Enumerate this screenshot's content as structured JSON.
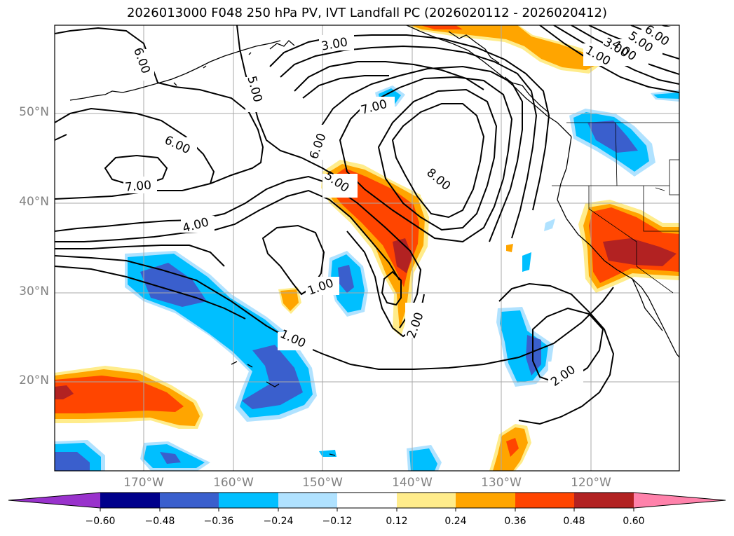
{
  "title": "2026013000 F048 250 hPa PV, IVT Landfall PC (2026020112 - 2026020412)",
  "lat_labels": [
    "50°N",
    "40°N",
    "30°N",
    "20°N"
  ],
  "lon_labels": [
    "170°W",
    "160°W",
    "150°W",
    "140°W",
    "130°W",
    "120°W"
  ],
  "contour_labels": [
    "3.00",
    "6.00",
    "5.00",
    "6.00",
    "7.00",
    "4.00",
    "6.00",
    "7.00",
    "5.00",
    "8.00",
    "1.00",
    "1.00",
    "2.00",
    "2.00",
    "5.00",
    "6.00",
    "4.00",
    "3.00",
    "1.00"
  ],
  "colorbar": {
    "ticks": [
      "−0.60",
      "−0.48",
      "−0.36",
      "−0.24",
      "−0.12",
      "0.12",
      "0.24",
      "0.36",
      "0.48",
      "0.60"
    ],
    "colors": [
      "#9932cc",
      "#00008b",
      "#3a5fcd",
      "#00bfff",
      "#b0e2ff",
      "#ffffff",
      "#ffec8b",
      "#ffa500",
      "#ff4500",
      "#b22222",
      "#ff82ab"
    ]
  },
  "shading_colors": {
    "neg1": "#b0e2ff",
    "neg2": "#00bfff",
    "neg3": "#3a5fcd",
    "neg4": "#00008b",
    "pos1": "#ffec8b",
    "pos2": "#ffa500",
    "pos3": "#ff4500",
    "pos4": "#b22222"
  }
}
